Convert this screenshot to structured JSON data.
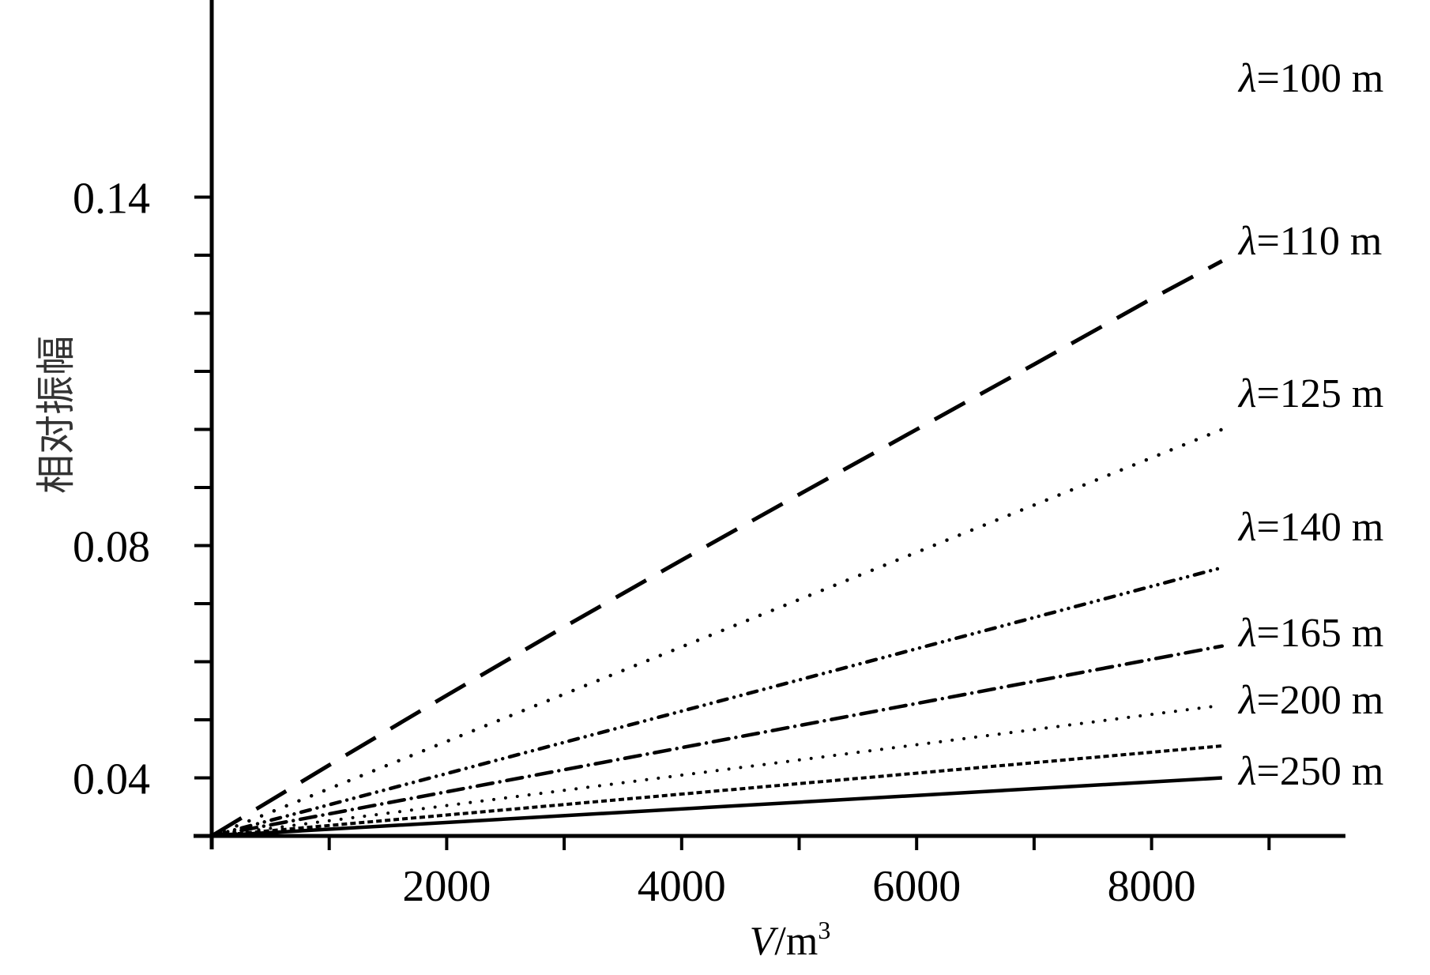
{
  "chart_data": {
    "type": "line",
    "title": "",
    "xlabel": {
      "var": "V",
      "unit": "/m",
      "sup": "3"
    },
    "ylabel": "相对振幅",
    "xlim": [
      -150,
      9650
    ],
    "ylim": [
      0.03,
      0.14
    ],
    "x_major_ticks": [
      2000,
      4000,
      6000,
      8000
    ],
    "x_minor_ticks": [
      1000,
      3000,
      5000,
      7000,
      9000
    ],
    "y_tick_labels": [
      {
        "value": 0.04,
        "label": "0.04"
      },
      {
        "value": 0.08,
        "label": "0.08"
      },
      {
        "value": 0.14,
        "label": "0.14"
      }
    ],
    "y_minor_ticks": [
      0.05,
      0.06,
      0.07,
      0.09,
      0.1,
      0.11,
      0.12,
      0.13
    ],
    "grid": false,
    "series": [
      {
        "name": "λ=100 m",
        "greek": "λ",
        "rest": "=100 m",
        "style": "dash",
        "x": [
          0,
          1000,
          2000,
          3000,
          4000,
          5000,
          6000,
          7000,
          8000,
          8600
        ],
        "y": [
          0.03,
          0.0422,
          0.0542,
          0.066,
          0.0775,
          0.0888,
          0.1,
          0.1112,
          0.1225,
          0.129
        ]
      },
      {
        "name": "λ=110 m",
        "greek": "λ",
        "rest": "=110 m",
        "style": "dot",
        "x": [
          0,
          8600
        ],
        "y": [
          0.03,
          0.1
        ]
      },
      {
        "name": "λ=125 m",
        "greek": "λ",
        "rest": "=125 m",
        "style": "dashdotdot",
        "x": [
          0,
          8600
        ],
        "y": [
          0.03,
          0.0762
        ]
      },
      {
        "name": "λ=140 m",
        "greek": "λ",
        "rest": "=140 m",
        "style": "dashdot",
        "x": [
          0,
          8600
        ],
        "y": [
          0.03,
          0.0627
        ]
      },
      {
        "name": "λ=165 m",
        "greek": "λ",
        "rest": "=165 m",
        "style": "dotsparse",
        "x": [
          0,
          8600
        ],
        "y": [
          0.03,
          0.0525
        ]
      },
      {
        "name": "λ=200 m",
        "greek": "λ",
        "rest": "=200 m",
        "style": "shortdash",
        "x": [
          0,
          8600
        ],
        "y": [
          0.03,
          0.0455
        ]
      },
      {
        "name": "λ=250 m",
        "greek": "λ",
        "rest": "=250 m",
        "style": "solid",
        "x": [
          0,
          8600
        ],
        "y": [
          0.03,
          0.04
        ]
      }
    ]
  }
}
